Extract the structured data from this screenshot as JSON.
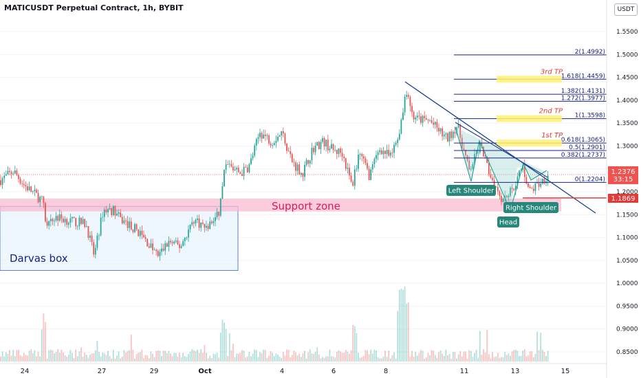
{
  "header": {
    "title": "MATICUSDT Perpetual Contract, 1h, BYBIT",
    "currency_button": "USDT"
  },
  "colors": {
    "up": "#26a69a",
    "down": "#ef5350",
    "fib": "#1a237e",
    "trend": "#1a3f8f",
    "tp_highlight": "#fff176",
    "support_zone": "#f8bbd0",
    "darvas_fill": "#e3f2fd",
    "current_price_tag": "#ef5350",
    "red_level_tag": "#e53935",
    "pattern_tag": "#26877a"
  },
  "chart_data": {
    "type": "candlestick",
    "symbol": "MATICUSDT",
    "interval": "1h",
    "exchange": "BYBIT",
    "ylim": [
      0.83,
      1.6
    ],
    "price_ticks": [
      "1.5500",
      "1.5000",
      "1.4500",
      "1.4000",
      "1.3500",
      "1.3000",
      "1.2500",
      "1.2000",
      "1.1500",
      "1.1000",
      "1.0500",
      "1.0000",
      "0.9500",
      "0.9000",
      "0.8500"
    ],
    "date_ticks": [
      "24",
      "27",
      "29",
      "Oct",
      "4",
      "6",
      "8",
      "11",
      "13",
      "15"
    ],
    "current_price": "1.2376",
    "countdown": "33:15",
    "red_level": "1.1869",
    "fib_levels": [
      {
        "label": "2(1.4992)",
        "price": 1.4992
      },
      {
        "label": "1.618(1.4459)",
        "price": 1.4459
      },
      {
        "label": "1.382(1.4131)",
        "price": 1.4131
      },
      {
        "label": "1.272(1.3977)",
        "price": 1.3977
      },
      {
        "label": "1(1.3598)",
        "price": 1.3598
      },
      {
        "label": "0.618(1.3065)",
        "price": 1.3065
      },
      {
        "label": "0.5(1.2901)",
        "price": 1.2901
      },
      {
        "label": "0.382(1.2737)",
        "price": 1.2737
      },
      {
        "label": "0(1.2204)",
        "price": 1.2204
      }
    ],
    "targets": [
      {
        "label": "3rd TP",
        "price": 1.4459
      },
      {
        "label": "2nd TP",
        "price": 1.3598
      },
      {
        "label": "1st TP",
        "price": 1.3065
      }
    ],
    "zones": {
      "support_label": "Support zone",
      "support_top": 1.185,
      "support_bottom": 1.157,
      "darvas_label": "Darvas box",
      "darvas_top": 1.168,
      "darvas_bottom": 1.028
    },
    "pattern_labels": [
      "Left Shoulder",
      "Head",
      "Right Shoulder"
    ]
  }
}
